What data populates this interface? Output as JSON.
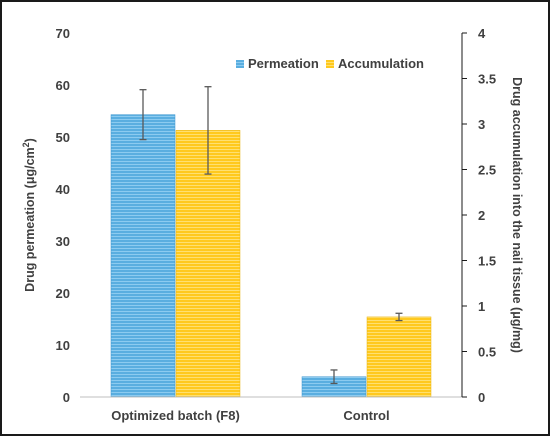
{
  "chart_data": {
    "type": "bar",
    "categories": [
      "Optimized batch (F8)",
      "Control"
    ],
    "series": [
      {
        "name": "Permeation",
        "axis": "left",
        "color": "#5AAEE0",
        "values": [
          54.3,
          3.9
        ],
        "error": [
          4.8,
          1.3
        ]
      },
      {
        "name": "Accumulation",
        "axis": "right",
        "color": "#FFC91E",
        "values": [
          2.93,
          0.88
        ],
        "error": [
          0.48,
          0.04
        ]
      }
    ],
    "ylabel": "Drug permeation (μg/cm²)",
    "ylabel_text": "Drug permeation (μg/cm",
    "ylabel_sup": "2",
    "ylabel_suffix": ")",
    "y2label": "Drug accumulation into the nail tissue (μg/mg)",
    "ylim": [
      0,
      70
    ],
    "yticks": [
      "0",
      "10",
      "20",
      "30",
      "40",
      "50",
      "60",
      "70"
    ],
    "y2lim": [
      0,
      4
    ],
    "y2ticks": [
      "0",
      "0.5",
      "1",
      "1.5",
      "2",
      "2.5",
      "3",
      "3.5",
      "4"
    ],
    "legend_position": "top-center",
    "grid": false
  }
}
